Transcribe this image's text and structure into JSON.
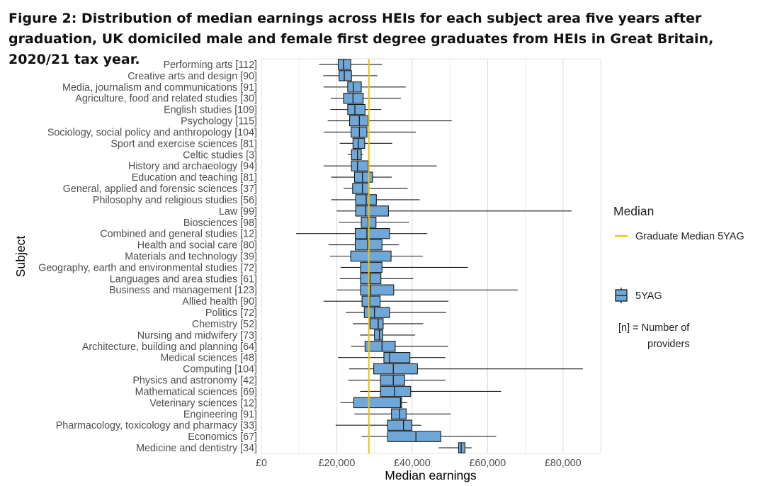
{
  "figure_title": "Figure 2: Distribution of median earnings across HEIs for each subject area five years after graduation, UK domiciled male and female first degree graduates from HEIs in Great Britain, 2020/21 tax year.",
  "colors": {
    "box_fill": "#6fa8d8",
    "box_stroke": "#1a1a1a",
    "median_line": "#f2c200",
    "grid_major": "#dcdcdc",
    "grid_minor": "#efefef"
  },
  "chart_data": {
    "type": "boxplot",
    "orientation": "horizontal",
    "xlabel": "Median earnings",
    "ylabel": "Subject",
    "xlim": [
      0,
      90000
    ],
    "xticks": [
      0,
      20000,
      40000,
      60000,
      80000
    ],
    "xtick_labels": [
      "£0",
      "£20,000",
      "£40,000",
      "£60,000",
      "£80,000"
    ],
    "reference_line": {
      "name": "Graduate Median 5YAG",
      "value": 28500
    },
    "legend": {
      "title": "Median",
      "line_label": "Graduate Median 5YAG",
      "box_label": "5YAG",
      "note_line1": "[n]  = Number of",
      "note_line2": "providers"
    },
    "series_name": "5YAG",
    "categories": [
      {
        "label": "Performing arts [112]",
        "min": 15300,
        "q1": 20400,
        "median": 21800,
        "q3": 23700,
        "max": 32000
      },
      {
        "label": "Creative arts and design [90]",
        "min": 16400,
        "q1": 20600,
        "median": 22000,
        "q3": 23900,
        "max": 30800
      },
      {
        "label": "Media, journalism and communications [91]",
        "min": 16500,
        "q1": 22900,
        "median": 24400,
        "q3": 26500,
        "max": 38300
      },
      {
        "label": "Agriculture, food and related studies [30]",
        "min": 18400,
        "q1": 21800,
        "median": 24300,
        "q3": 27000,
        "max": 37000
      },
      {
        "label": "English studies [109]",
        "min": 18300,
        "q1": 22900,
        "median": 24800,
        "q3": 27500,
        "max": 31800
      },
      {
        "label": "Psychology [115]",
        "min": 17600,
        "q1": 23400,
        "median": 26000,
        "q3": 28300,
        "max": 50500
      },
      {
        "label": "Sociology, social policy and anthropology [104]",
        "min": 16600,
        "q1": 23800,
        "median": 26000,
        "q3": 28000,
        "max": 41000
      },
      {
        "label": "Sport and exercise sciences [81]",
        "min": 20800,
        "q1": 24300,
        "median": 25700,
        "q3": 27400,
        "max": 34700
      },
      {
        "label": "Celtic studies [3]",
        "min": 22900,
        "q1": 23900,
        "median": 25500,
        "q3": 26500,
        "max": 27000
      },
      {
        "label": "History and archaeology [94]",
        "min": 16500,
        "q1": 23900,
        "median": 25500,
        "q3": 28300,
        "max": 46500
      },
      {
        "label": "Education and teaching [81]",
        "min": 18500,
        "q1": 24700,
        "median": 26800,
        "q3": 29500,
        "max": 34600
      },
      {
        "label": "General, applied and forensic sciences [37]",
        "min": 21800,
        "q1": 24200,
        "median": 26800,
        "q3": 28500,
        "max": 38800
      },
      {
        "label": "Philosophy and religious studies [56]",
        "min": 18500,
        "q1": 25000,
        "median": 27800,
        "q3": 30500,
        "max": 42000
      },
      {
        "label": "Law [99]",
        "min": 20000,
        "q1": 25000,
        "median": 27700,
        "q3": 33700,
        "max": 82300
      },
      {
        "label": "Biosciences [98]",
        "min": 20600,
        "q1": 26500,
        "median": 28300,
        "q3": 30400,
        "max": 39200
      },
      {
        "label": "Combined and general studies [12]",
        "min": 9200,
        "q1": 24900,
        "median": 28000,
        "q3": 34000,
        "max": 44000
      },
      {
        "label": "Health and social care [80]",
        "min": 17800,
        "q1": 24900,
        "median": 28200,
        "q3": 32000,
        "max": 36500
      },
      {
        "label": "Materials and technology [39]",
        "min": 18200,
        "q1": 23700,
        "median": 28500,
        "q3": 34400,
        "max": 42800
      },
      {
        "label": "Geography, earth and environmental studies [72]",
        "min": 21000,
        "q1": 26300,
        "median": 28500,
        "q3": 32000,
        "max": 54800
      },
      {
        "label": "Languages and area studies [61]",
        "min": 20800,
        "q1": 26300,
        "median": 28800,
        "q3": 31700,
        "max": 40300
      },
      {
        "label": "Business and management [123]",
        "min": 20000,
        "q1": 26300,
        "median": 29000,
        "q3": 35100,
        "max": 68000
      },
      {
        "label": "Allied health [90]",
        "min": 16500,
        "q1": 26700,
        "median": 28700,
        "q3": 31500,
        "max": 49600
      },
      {
        "label": "Politics [72]",
        "min": 22400,
        "q1": 27300,
        "median": 30000,
        "q3": 34000,
        "max": 49000
      },
      {
        "label": "Chemistry [52]",
        "min": 24300,
        "q1": 28800,
        "median": 31000,
        "q3": 32300,
        "max": 42900
      },
      {
        "label": "Nursing and midwifery [73]",
        "min": 26200,
        "q1": 30000,
        "median": 31300,
        "q3": 32200,
        "max": 40800
      },
      {
        "label": "Architecture, building and planning [64]",
        "min": 23800,
        "q1": 27500,
        "median": 32000,
        "q3": 35500,
        "max": 49500
      },
      {
        "label": "Medical sciences [48]",
        "min": 20300,
        "q1": 32500,
        "median": 34000,
        "q3": 39400,
        "max": 48800
      },
      {
        "label": "Computing [104]",
        "min": 23300,
        "q1": 29800,
        "median": 35000,
        "q3": 41400,
        "max": 85300
      },
      {
        "label": "Physics and astronomy [42]",
        "min": 23000,
        "q1": 31600,
        "median": 35000,
        "q3": 38000,
        "max": 48800
      },
      {
        "label": "Mathematical sciences [69]",
        "min": 26200,
        "q1": 31600,
        "median": 35300,
        "q3": 39600,
        "max": 63600
      },
      {
        "label": "Veterinary sciences [12]",
        "min": 21000,
        "q1": 24500,
        "median": 36900,
        "q3": 37200,
        "max": 38700
      },
      {
        "label": "Engineering [91]",
        "min": 24700,
        "q1": 34500,
        "median": 36700,
        "q3": 38400,
        "max": 50200
      },
      {
        "label": "Pharmacology, toxicology and pharmacy [33]",
        "min": 19700,
        "q1": 33500,
        "median": 37700,
        "q3": 39900,
        "max": 42400
      },
      {
        "label": "Economics [67]",
        "min": 26600,
        "q1": 33500,
        "median": 41000,
        "q3": 47600,
        "max": 62300
      },
      {
        "label": "Medicine and dentistry [34]",
        "min": 47000,
        "q1": 52300,
        "median": 53000,
        "q3": 54000,
        "max": 55800
      }
    ]
  }
}
